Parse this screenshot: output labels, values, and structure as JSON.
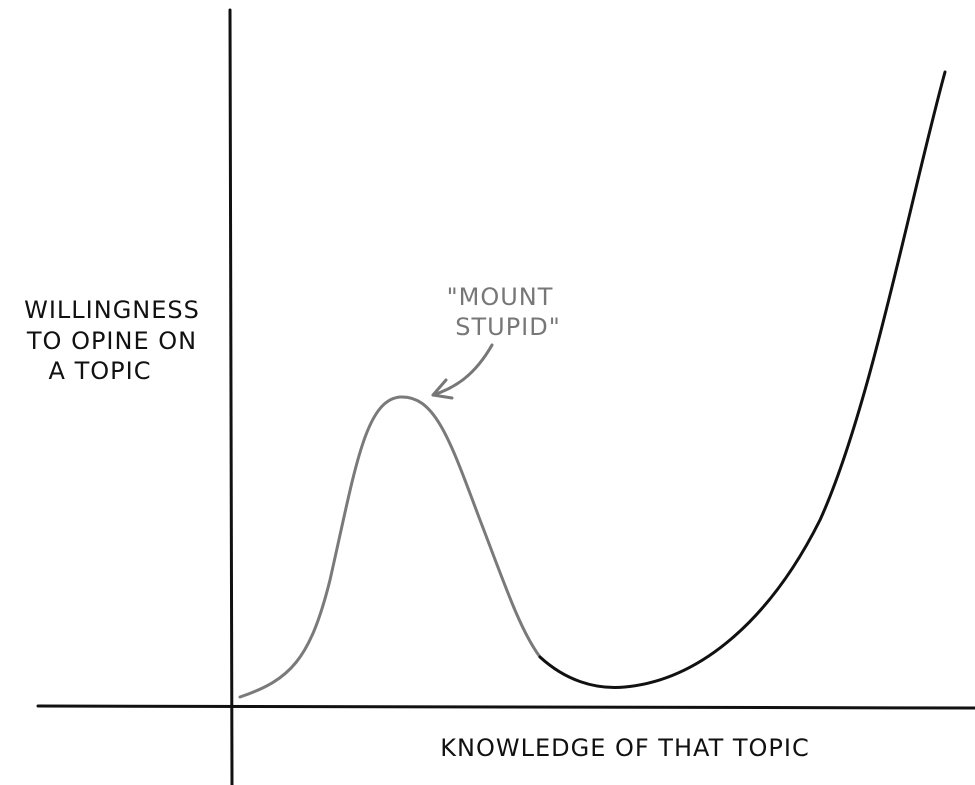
{
  "y_axis_label": [
    "WILLINGNESS",
    "TO OPINE ON",
    "A TOPIC"
  ],
  "x_axis_label": "KNOWLEDGE OF THAT TOPIC",
  "annotation": [
    "\"MOUNT",
    "STUPID\""
  ]
}
